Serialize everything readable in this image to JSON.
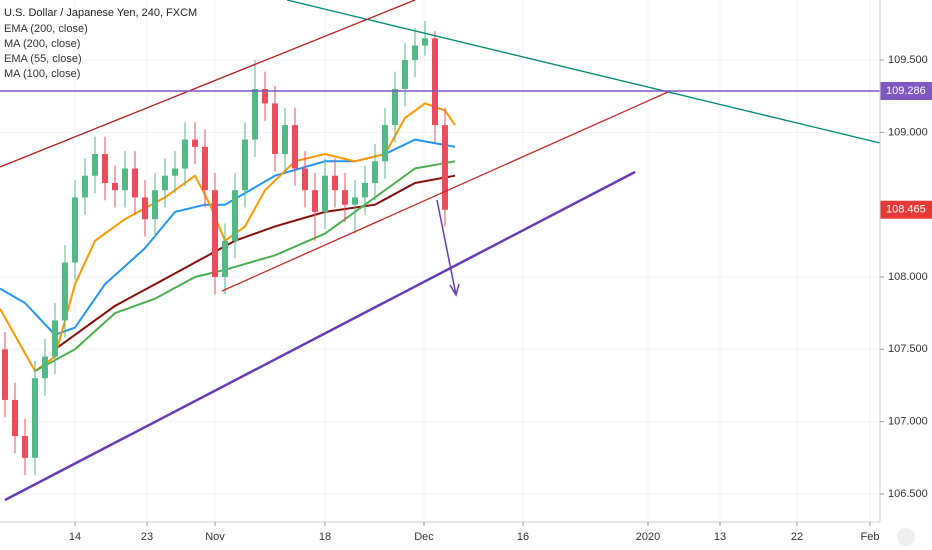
{
  "chart_data": {
    "type": "candlestick",
    "title": "U.S. Dollar / Japanese Yen, 240, FXCM",
    "up_color": "#53b987",
    "down_color": "#eb4d5c",
    "x": [
      -7,
      -6,
      -5,
      -4,
      -3,
      -2,
      -1,
      0,
      1,
      2,
      3,
      4,
      5,
      6,
      7,
      8,
      9,
      10,
      11,
      12,
      13,
      14,
      15,
      16,
      17,
      18,
      19,
      20,
      21,
      22,
      23,
      24,
      25,
      26,
      27,
      28,
      29,
      30,
      31,
      32,
      33,
      34,
      35,
      36,
      37
    ],
    "open": [
      107.5,
      107.15,
      106.9,
      106.75,
      107.3,
      107.45,
      107.7,
      108.1,
      108.55,
      108.7,
      108.85,
      108.65,
      108.6,
      108.75,
      108.55,
      108.4,
      108.6,
      108.7,
      108.75,
      108.95,
      108.9,
      108.6,
      108.0,
      108.25,
      108.6,
      108.95,
      109.3,
      109.2,
      108.85,
      109.05,
      108.75,
      108.6,
      108.45,
      108.7,
      108.6,
      108.5,
      108.55,
      108.65,
      108.8,
      109.05,
      109.3,
      109.5,
      109.6,
      109.65,
      109.05
    ],
    "high": [
      107.62,
      107.27,
      107.02,
      107.42,
      107.57,
      107.82,
      108.22,
      108.67,
      108.82,
      108.97,
      108.97,
      108.77,
      108.87,
      108.87,
      108.67,
      108.72,
      108.82,
      108.87,
      109.07,
      109.07,
      109.02,
      108.72,
      108.37,
      108.72,
      109.07,
      109.5,
      109.42,
      109.32,
      109.17,
      109.17,
      108.87,
      108.72,
      108.82,
      108.82,
      108.72,
      108.67,
      108.77,
      108.92,
      109.17,
      109.42,
      109.62,
      109.72,
      109.77,
      109.7,
      109.17
    ],
    "low": [
      107.03,
      106.78,
      106.63,
      106.63,
      107.18,
      107.33,
      107.58,
      107.98,
      108.43,
      108.58,
      108.53,
      108.48,
      108.48,
      108.43,
      108.28,
      108.28,
      108.48,
      108.58,
      108.63,
      108.78,
      108.48,
      107.88,
      107.88,
      108.13,
      108.48,
      108.83,
      109.08,
      108.73,
      108.73,
      108.63,
      108.48,
      108.25,
      108.33,
      108.48,
      108.38,
      108.3,
      108.43,
      108.53,
      108.68,
      108.93,
      109.18,
      109.38,
      109.53,
      108.93,
      108.35
    ],
    "close": [
      107.15,
      106.9,
      106.75,
      107.3,
      107.45,
      107.7,
      108.1,
      108.55,
      108.7,
      108.85,
      108.65,
      108.6,
      108.75,
      108.55,
      108.4,
      108.6,
      108.7,
      108.75,
      108.95,
      108.9,
      108.6,
      108.0,
      108.25,
      108.6,
      108.95,
      109.3,
      109.2,
      108.85,
      109.05,
      108.75,
      108.6,
      108.45,
      108.7,
      108.6,
      108.5,
      108.55,
      108.65,
      108.8,
      109.05,
      109.3,
      109.5,
      109.6,
      109.65,
      109.05,
      108.465
    ],
    "series": [
      {
        "name": "EMA (200, close)",
        "color": "#2196f3",
        "x": [
          -7.5,
          -5,
          -2,
          0,
          3,
          7,
          10,
          13,
          15,
          20,
          25,
          28,
          31,
          34,
          38
        ],
        "values": [
          107.92,
          107.82,
          107.6,
          107.65,
          107.95,
          108.2,
          108.45,
          108.5,
          108.5,
          108.7,
          108.8,
          108.8,
          108.85,
          108.95,
          108.9
        ]
      },
      {
        "name": "MA (200, close)",
        "color": "#880e0e",
        "x": [
          -2,
          0,
          4,
          8,
          12,
          16,
          20,
          25,
          30,
          34,
          38
        ],
        "values": [
          107.5,
          107.6,
          107.8,
          107.95,
          108.1,
          108.25,
          108.35,
          108.45,
          108.5,
          108.65,
          108.7
        ]
      },
      {
        "name": "EMA (55, close)",
        "color": "#ff9800",
        "x": [
          -7.5,
          -4,
          -2,
          0,
          2,
          5,
          9,
          12,
          13.5,
          15,
          17,
          19,
          22,
          25,
          28,
          31,
          33,
          35,
          37,
          38
        ],
        "values": [
          107.78,
          107.35,
          107.45,
          107.95,
          108.25,
          108.4,
          108.55,
          108.7,
          108.5,
          108.25,
          108.35,
          108.6,
          108.8,
          108.85,
          108.8,
          108.85,
          109.1,
          109.2,
          109.15,
          109.05
        ]
      },
      {
        "name": "MA (100, close)",
        "color": "#4caf50",
        "x": [
          -4,
          0,
          4,
          8,
          12,
          15,
          20,
          25,
          30,
          34,
          38
        ],
        "values": [
          107.35,
          107.5,
          107.75,
          107.85,
          108.0,
          108.05,
          108.15,
          108.3,
          108.55,
          108.75,
          108.8
        ]
      }
    ],
    "price_lines": [
      {
        "value": 109.286,
        "color": "#7e57c2",
        "full": true
      },
      {
        "value": 108.465,
        "color": "#e53935",
        "full": false
      }
    ],
    "ylim": [
      106.306,
      109.915
    ],
    "yticks": [
      {
        "value": 106.5,
        "label": "106.500"
      },
      {
        "value": 107,
        "label": "107.000"
      },
      {
        "value": 107.5,
        "label": "107.500"
      },
      {
        "value": 108,
        "label": "108.000"
      },
      {
        "value": 109,
        "label": "109.000"
      },
      {
        "value": 109.5,
        "label": "109.500"
      }
    ],
    "xlim": [
      -7.5,
      80.5
    ],
    "xticks": [
      {
        "value": 0,
        "label": "14"
      },
      {
        "value": 7.2,
        "label": "23"
      },
      {
        "value": 14,
        "label": "Nov"
      },
      {
        "value": 25,
        "label": "18"
      },
      {
        "value": 34.9,
        "label": "Dec"
      },
      {
        "value": 44.8,
        "label": "16"
      },
      {
        "value": 57.3,
        "label": "2020"
      },
      {
        "value": 64.5,
        "label": "13"
      },
      {
        "value": 72.2,
        "label": "22"
      },
      {
        "value": 79.5,
        "label": "Feb"
      }
    ],
    "grid": true
  }
}
